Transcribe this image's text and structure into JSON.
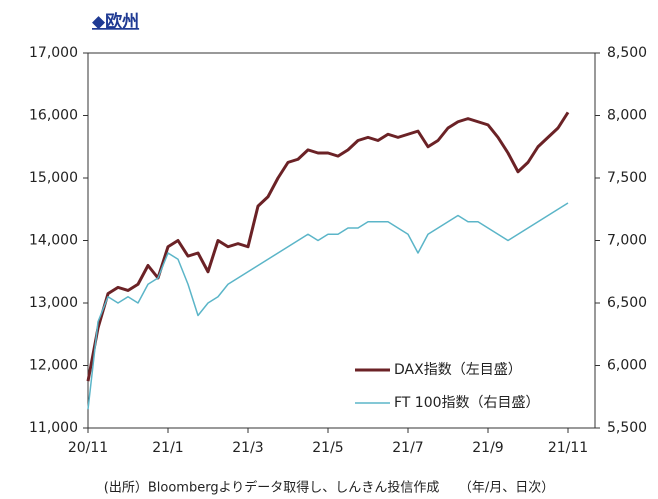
{
  "chart_data": {
    "type": "line",
    "title": "◆欧州",
    "note": "(出所）Bloombergよりデータ取得し、しんきん投信作成　　（年/月、日次）",
    "categories": [
      "20/11",
      null,
      null,
      null,
      null,
      null,
      null,
      null,
      "21/1",
      null,
      null,
      null,
      null,
      null,
      null,
      null,
      "21/3",
      null,
      null,
      null,
      null,
      null,
      null,
      null,
      "21/5",
      null,
      null,
      null,
      null,
      null,
      null,
      null,
      "21/7",
      null,
      null,
      null,
      null,
      null,
      null,
      null,
      "21/9",
      null,
      null,
      null,
      null,
      null,
      null,
      null,
      "21/11"
    ],
    "series": [
      {
        "name": "DAX指数（左目盛）",
        "color": "#6b2226",
        "values": [
          11750,
          12600,
          13150,
          13250,
          13200,
          13300,
          13600,
          13400,
          13900,
          14000,
          13750,
          13800,
          13500,
          14000,
          13900,
          13950,
          13900,
          14550,
          14700,
          15000,
          15250,
          15300,
          15450,
          15400,
          15400,
          15350,
          15450,
          15600,
          15650,
          15600,
          15700,
          15650,
          15700,
          15750,
          15500,
          15600,
          15800,
          15900,
          15950,
          15900,
          15850,
          15650,
          15400,
          15100,
          15250,
          15500,
          15650,
          15800,
          16050
        ]
      },
      {
        "name": "FT 100指数（右目盛）",
        "color": "#5bb5c8",
        "axis": "y2",
        "values": [
          5650,
          6350,
          6550,
          6500,
          6550,
          6500,
          6650,
          6700,
          6900,
          6850,
          6650,
          6400,
          6500,
          6550,
          6650,
          6700,
          6750,
          6800,
          6850,
          6900,
          6950,
          7000,
          7050,
          7000,
          7050,
          7050,
          7100,
          7100,
          7150,
          7150,
          7150,
          7100,
          7050,
          6900,
          7050,
          7100,
          7150,
          7200,
          7150,
          7150,
          7100,
          7050,
          7000,
          7050,
          7100,
          7150,
          7200,
          7250,
          7300
        ]
      }
    ],
    "ylim": [
      11000,
      17000
    ],
    "yticks": [
      {
        "value": 11000,
        "label": "11,000"
      },
      {
        "value": 12000,
        "label": "12,000"
      },
      {
        "value": 13000,
        "label": "13,000"
      },
      {
        "value": 14000,
        "label": "14,000"
      },
      {
        "value": 15000,
        "label": "15,000"
      },
      {
        "value": 16000,
        "label": "16,000"
      },
      {
        "value": 17000,
        "label": "17,000"
      }
    ],
    "y2lim": [
      5500,
      8500
    ],
    "y2ticks": [
      {
        "value": 5500,
        "label": "5,500"
      },
      {
        "value": 6000,
        "label": "6,000"
      },
      {
        "value": 6500,
        "label": "6,500"
      },
      {
        "value": 7000,
        "label": "7,000"
      },
      {
        "value": 7500,
        "label": "7,500"
      },
      {
        "value": 8000,
        "label": "8,000"
      },
      {
        "value": 8500,
        "label": "8,500"
      }
    ],
    "legend": "lower right",
    "grid": false
  }
}
